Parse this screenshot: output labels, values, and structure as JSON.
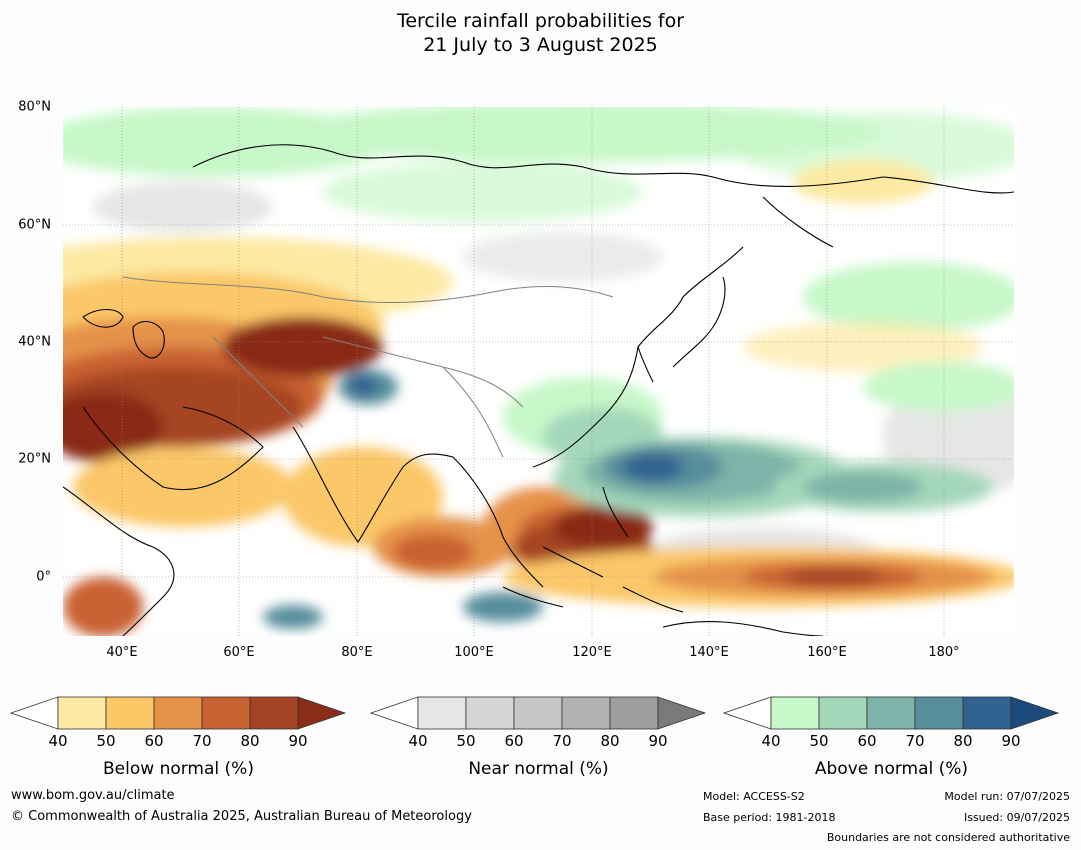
{
  "title": {
    "line1": "Tercile rainfall probabilities for",
    "line2": "21 July to 3 August 2025"
  },
  "map": {
    "lat_labels": [
      "80°N",
      "60°N",
      "40°N",
      "20°N",
      "0°"
    ],
    "lon_labels": [
      "40°E",
      "60°E",
      "80°E",
      "100°E",
      "120°E",
      "140°E",
      "160°E",
      "180°"
    ],
    "gridlines": "dotted"
  },
  "legends": {
    "below": {
      "title": "Below normal (%)",
      "ticks": [
        "40",
        "50",
        "60",
        "70",
        "80",
        "90"
      ],
      "colors": [
        "#ffffff",
        "#fde9a2",
        "#fbc767",
        "#e59248",
        "#c96232",
        "#a54424",
        "#8a2c18"
      ]
    },
    "near": {
      "title": "Near normal (%)",
      "ticks": [
        "40",
        "50",
        "60",
        "70",
        "80",
        "90"
      ],
      "colors": [
        "#ffffff",
        "#e6e6e6",
        "#d6d6d6",
        "#c6c6c6",
        "#b2b2b2",
        "#9e9e9e",
        "#7a7a7a"
      ]
    },
    "above": {
      "title": "Above normal (%)",
      "ticks": [
        "40",
        "50",
        "60",
        "70",
        "80",
        "90"
      ],
      "colors": [
        "#ffffff",
        "#c7f8c9",
        "#a4d7ba",
        "#7db3a9",
        "#578e9c",
        "#32628f",
        "#1b4a7c"
      ]
    }
  },
  "footer": {
    "website": "www.bom.gov.au/climate",
    "copyright": "© Commonwealth of Australia 2025, Australian Bureau of Meteorology",
    "model": "Model: ACCESS-S2",
    "base_period": "Base period: 1981-2018",
    "model_run": "Model run: 07/07/2025",
    "issued": "Issued: 09/07/2025",
    "disclaimer": "Boundaries are not considered authoritative"
  }
}
